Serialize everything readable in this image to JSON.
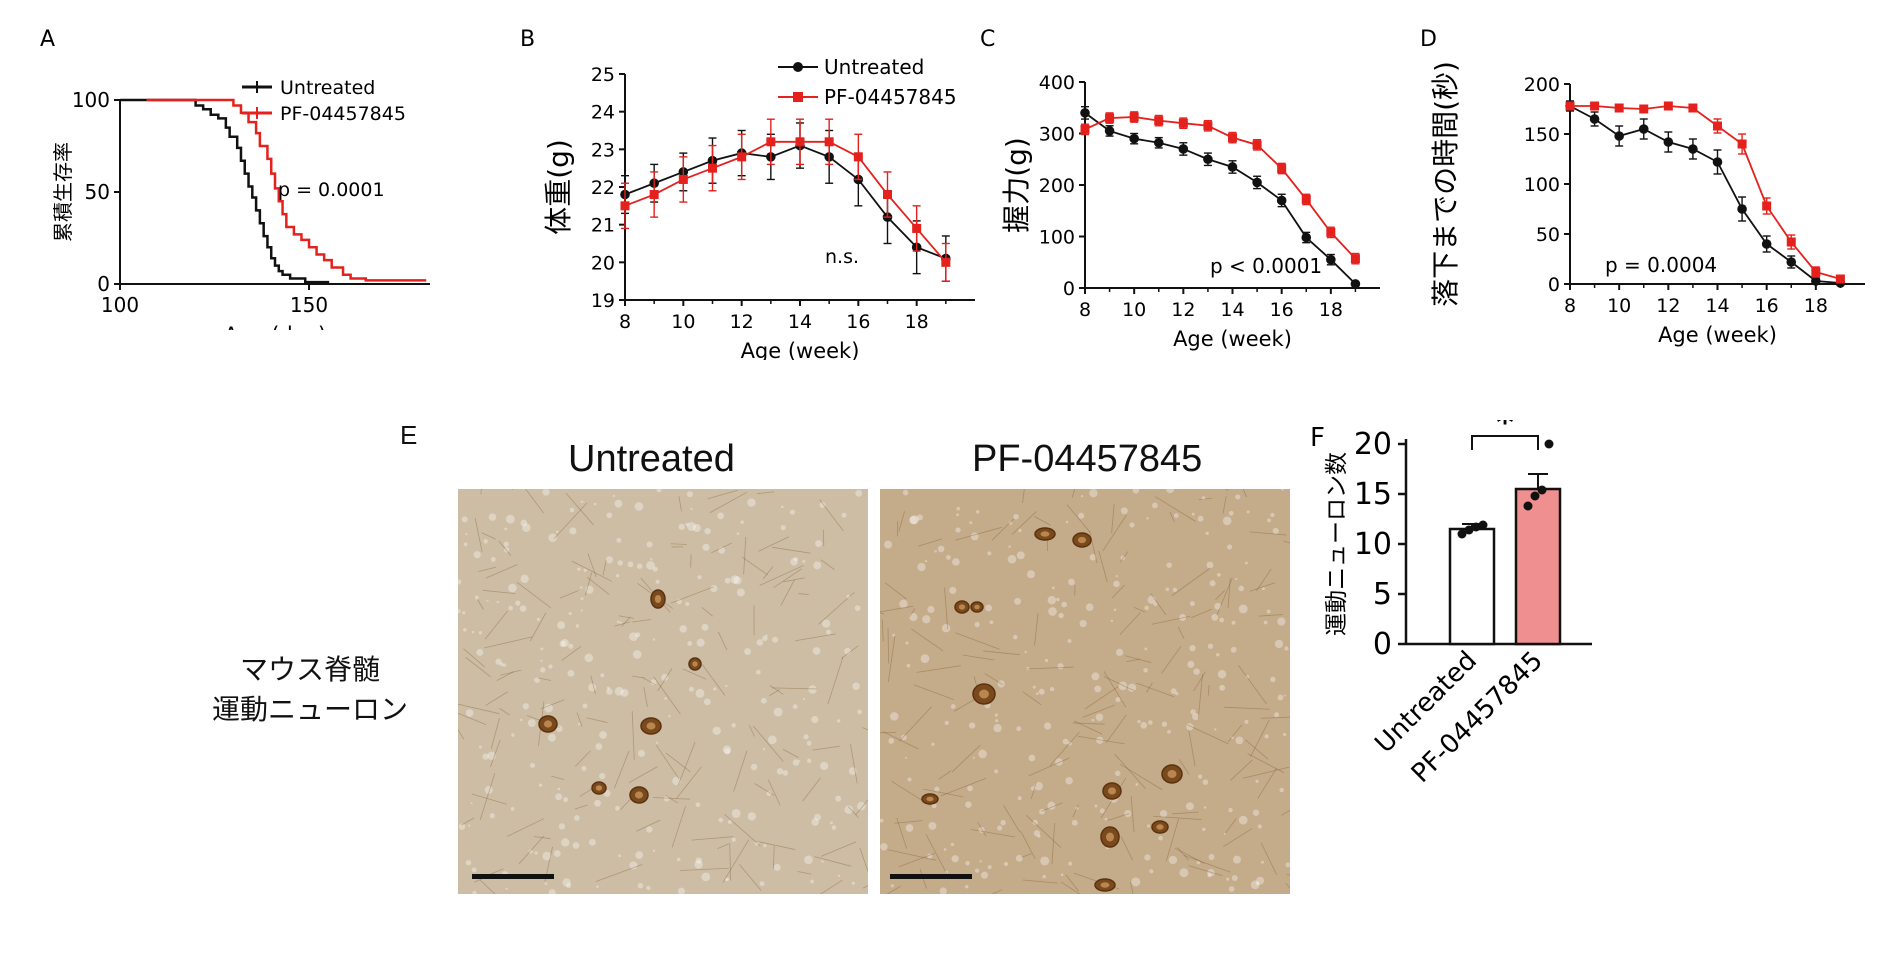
{
  "colors": {
    "untreated": "#111111",
    "treated": "#e4211c",
    "bar_untreated": "#ffffff",
    "bar_treated": "#ef8f8f",
    "tissue": "#cbb69b"
  },
  "panels": {
    "A": "A",
    "B": "B",
    "C": "C",
    "D": "D",
    "E": "E",
    "F": "F"
  },
  "chart_data": [
    {
      "id": "A",
      "type": "line",
      "step": true,
      "xlabel": "Age (day)",
      "ylabel": "累積生存率",
      "xticks": [
        100,
        150
      ],
      "yticks": [
        0,
        50,
        100
      ],
      "ytick_labels": [
        "0",
        "50",
        "100"
      ],
      "xlim": [
        100,
        182
      ],
      "ylim": [
        0,
        100
      ],
      "legend": {
        "position": "top-right",
        "entries": [
          "Untreated",
          "PF-04457845"
        ]
      },
      "annotation": "p = 0.0001",
      "series": [
        {
          "name": "Untreated",
          "color": "#111111",
          "x": [
            100,
            118,
            120,
            122,
            124,
            126,
            128,
            129,
            131,
            132,
            133,
            134,
            135,
            136,
            137,
            138,
            139,
            140,
            141,
            142,
            143,
            145,
            147,
            149,
            152,
            155,
            155
          ],
          "y": [
            100,
            100,
            97,
            95,
            92,
            90,
            85,
            80,
            74,
            67,
            60,
            53,
            47,
            40,
            33,
            26,
            20,
            14,
            10,
            7,
            5,
            3,
            3,
            1,
            1,
            0,
            0
          ]
        },
        {
          "name": "PF-04457845",
          "color": "#e4211c",
          "x": [
            107,
            128,
            130,
            132,
            134,
            136,
            137,
            139,
            140,
            141,
            142,
            143,
            144,
            146,
            148,
            150,
            152,
            154,
            156,
            159,
            161,
            163,
            165,
            170,
            181
          ],
          "y": [
            100,
            100,
            97,
            93,
            88,
            82,
            75,
            68,
            60,
            52,
            45,
            38,
            31,
            27,
            24,
            20,
            16,
            13,
            9,
            5,
            3,
            3,
            2,
            2,
            2
          ]
        }
      ]
    },
    {
      "id": "B",
      "type": "line",
      "xlabel": "Age (week)",
      "ylabel": "体重(g)",
      "xticks": [
        8,
        10,
        12,
        14,
        16,
        18
      ],
      "yticks": [
        19,
        20,
        21,
        22,
        23,
        24,
        25
      ],
      "xlim": [
        8,
        20
      ],
      "ylim": [
        19,
        25
      ],
      "legend": {
        "position": "top-right",
        "entries": [
          "Untreated",
          "PF-04457845"
        ]
      },
      "annotation": "n.s.",
      "series": [
        {
          "name": "Untreated",
          "color": "#111111",
          "x": [
            8,
            9,
            10,
            11,
            12,
            13,
            14,
            15,
            16,
            17,
            18,
            19
          ],
          "y": [
            21.8,
            22.1,
            22.4,
            22.7,
            22.9,
            22.8,
            23.1,
            22.8,
            22.2,
            21.2,
            20.4,
            20.1
          ],
          "err": [
            0.5,
            0.5,
            0.5,
            0.6,
            0.6,
            0.6,
            0.6,
            0.7,
            0.7,
            0.7,
            0.7,
            0.6
          ]
        },
        {
          "name": "PF-04457845",
          "color": "#e4211c",
          "x": [
            8,
            9,
            10,
            11,
            12,
            13,
            14,
            15,
            16,
            17,
            18,
            19
          ],
          "y": [
            21.5,
            21.8,
            22.2,
            22.5,
            22.8,
            23.2,
            23.2,
            23.2,
            22.8,
            21.8,
            20.9,
            20.0
          ],
          "err": [
            0.6,
            0.6,
            0.6,
            0.6,
            0.6,
            0.6,
            0.6,
            0.6,
            0.6,
            0.6,
            0.6,
            0.5
          ]
        }
      ]
    },
    {
      "id": "C",
      "type": "line",
      "xlabel": "Age (week)",
      "ylabel": "握力(g)",
      "xticks": [
        8,
        10,
        12,
        14,
        16,
        18
      ],
      "yticks": [
        0,
        100,
        200,
        300,
        400
      ],
      "xlim": [
        8,
        20
      ],
      "ylim": [
        0,
        400
      ],
      "annotation": "p < 0.0001",
      "series": [
        {
          "name": "Untreated",
          "color": "#111111",
          "x": [
            8,
            9,
            10,
            11,
            12,
            13,
            14,
            15,
            16,
            17,
            18,
            19
          ],
          "y": [
            340,
            305,
            290,
            282,
            270,
            250,
            235,
            205,
            170,
            98,
            55,
            8
          ],
          "err": [
            12,
            10,
            10,
            10,
            12,
            12,
            12,
            12,
            12,
            10,
            10,
            4
          ]
        },
        {
          "name": "PF-04457845",
          "color": "#e4211c",
          "x": [
            8,
            9,
            10,
            11,
            12,
            13,
            14,
            15,
            16,
            17,
            18,
            19
          ],
          "y": [
            308,
            330,
            332,
            325,
            320,
            315,
            292,
            278,
            232,
            172,
            108,
            57
          ],
          "err": [
            10,
            10,
            10,
            10,
            10,
            10,
            10,
            10,
            10,
            10,
            10,
            10
          ]
        }
      ]
    },
    {
      "id": "D",
      "type": "line",
      "xlabel": "Age (week)",
      "ylabel": "落下までの時間(秒)",
      "xticks": [
        8,
        10,
        12,
        14,
        16,
        18
      ],
      "yticks": [
        0,
        50,
        100,
        150,
        200
      ],
      "xlim": [
        8,
        20
      ],
      "ylim": [
        0,
        200
      ],
      "annotation": "p = 0.0004",
      "series": [
        {
          "name": "Untreated",
          "color": "#111111",
          "x": [
            8,
            9,
            10,
            11,
            12,
            13,
            14,
            15,
            16,
            17,
            18,
            19
          ],
          "y": [
            178,
            165,
            148,
            155,
            142,
            135,
            122,
            75,
            40,
            22,
            3,
            1
          ],
          "err": [
            5,
            7,
            10,
            10,
            10,
            10,
            12,
            12,
            8,
            6,
            3,
            1
          ]
        },
        {
          "name": "PF-04457845",
          "color": "#e4211c",
          "x": [
            8,
            9,
            10,
            11,
            12,
            13,
            14,
            15,
            16,
            17,
            18,
            19
          ],
          "y": [
            178,
            178,
            176,
            175,
            178,
            176,
            158,
            140,
            78,
            42,
            12,
            5
          ],
          "err": [
            3,
            3,
            3,
            3,
            3,
            3,
            7,
            10,
            8,
            7,
            5,
            3
          ]
        }
      ]
    },
    {
      "id": "F",
      "type": "bar",
      "categories": [
        "Untreated",
        "PF-04457845"
      ],
      "values": [
        11.5,
        15.5
      ],
      "err": [
        0.5,
        1.5
      ],
      "points": [
        [
          11,
          11.4,
          11.7,
          11.9
        ],
        [
          13.8,
          14.8,
          15.4,
          20
        ]
      ],
      "ylabel": "運動ニューロン数",
      "yticks": [
        0,
        5,
        10,
        15,
        20
      ],
      "ylim": [
        0,
        20
      ],
      "annotation": "*"
    }
  ],
  "panelE": {
    "col1": "Untreated",
    "col2": "PF-04457845",
    "caption_line1": "マウス脊髄",
    "caption_line2": "運動ニューロン"
  }
}
